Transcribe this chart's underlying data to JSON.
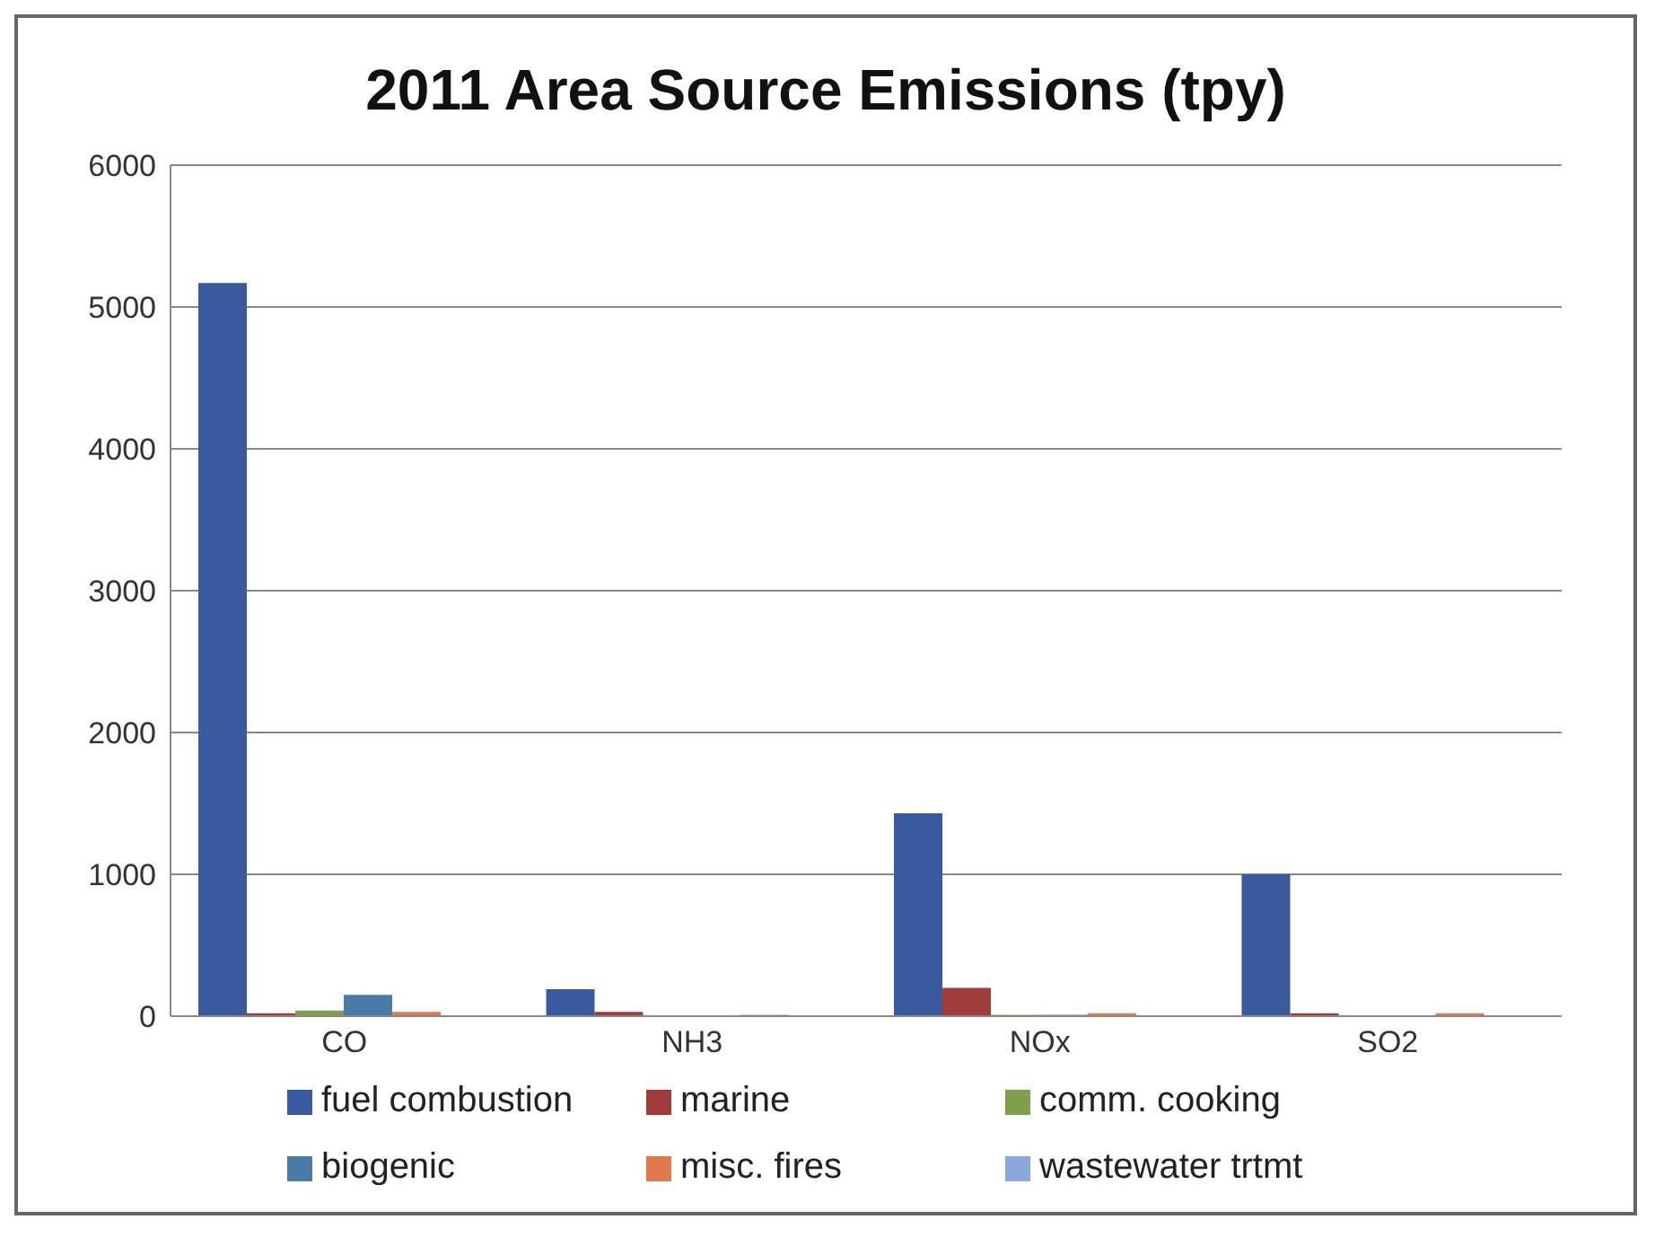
{
  "chart_data": {
    "type": "bar",
    "title": "2011 Area Source Emissions (tpy)",
    "categories": [
      "CO",
      "NH3",
      "NOx",
      "SO2"
    ],
    "series": [
      {
        "name": "fuel combustion",
        "color": "#3a5aa0",
        "values": [
          5170,
          190,
          1430,
          1000
        ]
      },
      {
        "name": "marine",
        "color": "#a03c3a",
        "values": [
          20,
          30,
          200,
          20
        ]
      },
      {
        "name": "comm. cooking",
        "color": "#7f9f4a",
        "values": [
          40,
          0,
          10,
          0
        ]
      },
      {
        "name": "biogenic",
        "color": "#4a7aa6",
        "values": [
          150,
          0,
          10,
          0
        ]
      },
      {
        "name": "misc. fires",
        "color": "#e07a4a",
        "values": [
          30,
          10,
          20,
          20
        ]
      },
      {
        "name": "wastewater trtmt",
        "color": "#8aa8dc",
        "values": [
          0,
          0,
          0,
          0
        ]
      }
    ],
    "ylim": [
      0,
      6000
    ],
    "yticks": [
      0,
      1000,
      2000,
      3000,
      4000,
      5000,
      6000
    ],
    "grid": "y",
    "legend": "bottom"
  }
}
